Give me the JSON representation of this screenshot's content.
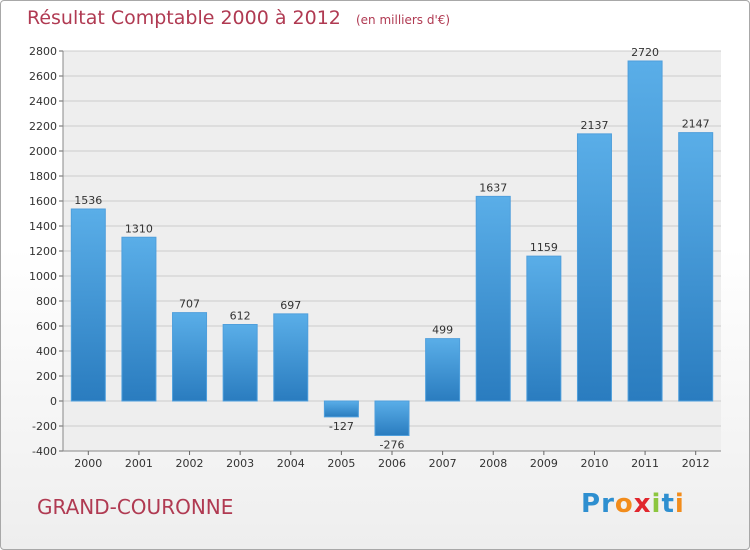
{
  "header": {
    "title": "Résultat Comptable 2000 à 2012",
    "unit": "(en milliers d'€)"
  },
  "footer": {
    "commune": "GRAND-COURONNE",
    "brand": [
      {
        "ch": "P",
        "color": "#2e8fd0"
      },
      {
        "ch": "r",
        "color": "#2e8fd0"
      },
      {
        "ch": "o",
        "color": "#f28c1b"
      },
      {
        "ch": "x",
        "color": "#e1262d"
      },
      {
        "ch": "i",
        "color": "#8cc63f"
      },
      {
        "ch": "t",
        "color": "#2e8fd0"
      },
      {
        "ch": "i",
        "color": "#f28c1b"
      }
    ]
  },
  "colors": {
    "title": "#b03a52",
    "bar_light": "#5aaee8",
    "bar_dark": "#2a7cbf",
    "grid": "#cccccc",
    "plot_bg": "#eeeeee"
  },
  "chart_data": {
    "type": "bar",
    "title": "Résultat Comptable 2000 à 2012",
    "xlabel": "",
    "ylabel": "",
    "categories": [
      "2000",
      "2001",
      "2002",
      "2003",
      "2004",
      "2005",
      "2006",
      "2007",
      "2008",
      "2009",
      "2010",
      "2011",
      "2012"
    ],
    "values": [
      1536,
      1310,
      707,
      612,
      697,
      -127,
      -276,
      499,
      1637,
      1159,
      2137,
      2720,
      2147
    ],
    "labels": [
      "1536",
      "1310",
      "707",
      "612",
      "697",
      "-127",
      "-276",
      "499",
      "1637",
      "1159",
      "2137",
      "2720",
      "2147"
    ],
    "ylim": [
      -400,
      2800
    ],
    "yticks": [
      -400,
      -200,
      0,
      200,
      400,
      600,
      800,
      1000,
      1200,
      1400,
      1600,
      1800,
      2000,
      2200,
      2400,
      2600,
      2800
    ],
    "grid": true,
    "legend": "none"
  }
}
